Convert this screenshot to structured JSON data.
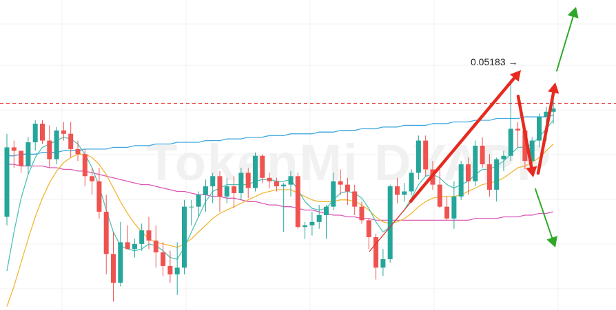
{
  "chart_data": {
    "type": "candlestick",
    "price_annotation": "0.05183 →",
    "watermark": "TokenMi DYAPP",
    "colors": {
      "up": "#26a69a",
      "down": "#ef5350",
      "ma_short": "#4dc3b6",
      "ma_mid": "#f2b632",
      "ma_long": "#d957b6",
      "ma_longest": "#3fa7e0",
      "resistance": "#e53935",
      "arrow_red": "#e62a1f",
      "arrow_green": "#2fa82a",
      "grid": "#f0f0f0"
    },
    "y_range": [
      0.0382,
      0.0565
    ],
    "resistance_level": 0.0504,
    "candles": [
      [
        0.0437,
        0.0486,
        0.0432,
        0.0478
      ],
      [
        0.0478,
        0.0482,
        0.0466,
        0.0476
      ],
      [
        0.0476,
        0.0476,
        0.0463,
        0.0467
      ],
      [
        0.0467,
        0.0484,
        0.0462,
        0.0481
      ],
      [
        0.0481,
        0.0494,
        0.0476,
        0.0492
      ],
      [
        0.0492,
        0.0494,
        0.048,
        0.0482
      ],
      [
        0.0482,
        0.0491,
        0.0466,
        0.0471
      ],
      [
        0.0471,
        0.049,
        0.0468,
        0.0488
      ],
      [
        0.0488,
        0.0493,
        0.0482,
        0.0486
      ],
      [
        0.0486,
        0.0493,
        0.0472,
        0.0477
      ],
      [
        0.0477,
        0.0482,
        0.047,
        0.0474
      ],
      [
        0.0474,
        0.0477,
        0.0455,
        0.0461
      ],
      [
        0.0461,
        0.0466,
        0.045,
        0.0458
      ],
      [
        0.0458,
        0.0466,
        0.0436,
        0.044
      ],
      [
        0.044,
        0.045,
        0.0403,
        0.0415
      ],
      [
        0.0415,
        0.0428,
        0.0387,
        0.0398
      ],
      [
        0.0398,
        0.0434,
        0.0396,
        0.0422
      ],
      [
        0.0422,
        0.0432,
        0.0418,
        0.0418
      ],
      [
        0.0418,
        0.0424,
        0.0413,
        0.0421
      ],
      [
        0.0421,
        0.0433,
        0.0417,
        0.0429
      ],
      [
        0.0429,
        0.0437,
        0.0418,
        0.0423
      ],
      [
        0.0423,
        0.0432,
        0.0407,
        0.0416
      ],
      [
        0.0416,
        0.0422,
        0.0402,
        0.0408
      ],
      [
        0.0408,
        0.0417,
        0.0398,
        0.0403
      ],
      [
        0.0403,
        0.0422,
        0.0391,
        0.0407
      ],
      [
        0.0407,
        0.0447,
        0.0403,
        0.0443
      ],
      [
        0.0443,
        0.0447,
        0.0432,
        0.0443
      ],
      [
        0.0443,
        0.0452,
        0.0437,
        0.045
      ],
      [
        0.045,
        0.0459,
        0.044,
        0.0455
      ],
      [
        0.0455,
        0.0463,
        0.0445,
        0.0461
      ],
      [
        0.0461,
        0.0464,
        0.044,
        0.0449
      ],
      [
        0.0449,
        0.046,
        0.0445,
        0.0455
      ],
      [
        0.0455,
        0.0461,
        0.0442,
        0.0451
      ],
      [
        0.0451,
        0.0466,
        0.0447,
        0.0463
      ],
      [
        0.0463,
        0.0466,
        0.0448,
        0.0454
      ],
      [
        0.0454,
        0.0475,
        0.0452,
        0.0473
      ],
      [
        0.0473,
        0.0474,
        0.0457,
        0.046
      ],
      [
        0.046,
        0.0463,
        0.0454,
        0.0458
      ],
      [
        0.0458,
        0.046,
        0.0452,
        0.0455
      ],
      [
        0.0455,
        0.0457,
        0.0428,
        0.0456
      ],
      [
        0.0456,
        0.0464,
        0.0449,
        0.0461
      ],
      [
        0.0461,
        0.0463,
        0.043,
        0.0431
      ],
      [
        0.0431,
        0.0434,
        0.0424,
        0.0432
      ],
      [
        0.0432,
        0.044,
        0.0426,
        0.0434
      ],
      [
        0.0434,
        0.0444,
        0.043,
        0.0438
      ],
      [
        0.0438,
        0.0444,
        0.0424,
        0.0443
      ],
      [
        0.0443,
        0.0463,
        0.0441,
        0.0458
      ],
      [
        0.0458,
        0.0465,
        0.045,
        0.0456
      ],
      [
        0.0456,
        0.046,
        0.0444,
        0.0452
      ],
      [
        0.0452,
        0.0456,
        0.0438,
        0.0443
      ],
      [
        0.0443,
        0.0446,
        0.0433,
        0.0435
      ],
      [
        0.0435,
        0.0436,
        0.0418,
        0.0425
      ],
      [
        0.0425,
        0.0427,
        0.04,
        0.0407
      ],
      [
        0.0407,
        0.0418,
        0.0402,
        0.0412
      ],
      [
        0.0412,
        0.0456,
        0.041,
        0.0455
      ],
      [
        0.0455,
        0.046,
        0.0445,
        0.045
      ],
      [
        0.045,
        0.0457,
        0.0446,
        0.0452
      ],
      [
        0.0452,
        0.0465,
        0.045,
        0.0463
      ],
      [
        0.0463,
        0.0485,
        0.0459,
        0.0482
      ],
      [
        0.0482,
        0.0485,
        0.0461,
        0.0465
      ],
      [
        0.0465,
        0.047,
        0.0453,
        0.0456
      ],
      [
        0.0456,
        0.0465,
        0.0442,
        0.0443
      ],
      [
        0.0443,
        0.0449,
        0.0435,
        0.0436
      ],
      [
        0.0436,
        0.0458,
        0.043,
        0.0449
      ],
      [
        0.0449,
        0.047,
        0.0447,
        0.0468
      ],
      [
        0.0468,
        0.0472,
        0.045,
        0.0458
      ],
      [
        0.0458,
        0.0482,
        0.0455,
        0.0479
      ],
      [
        0.0479,
        0.0484,
        0.0466,
        0.0468
      ],
      [
        0.0468,
        0.0474,
        0.0449,
        0.0453
      ],
      [
        0.0453,
        0.0472,
        0.0446,
        0.0471
      ],
      [
        0.0471,
        0.0476,
        0.0464,
        0.0473
      ],
      [
        0.0473,
        0.0518,
        0.047,
        0.0489
      ],
      [
        0.0489,
        0.0493,
        0.0478,
        0.0488
      ],
      [
        0.0488,
        0.049,
        0.0465,
        0.047
      ],
      [
        0.047,
        0.0484,
        0.0462,
        0.0482
      ],
      [
        0.0482,
        0.0498,
        0.0478,
        0.0496
      ],
      [
        0.0496,
        0.0502,
        0.0482,
        0.0499
      ],
      [
        0.0499,
        0.0506,
        0.0492,
        0.0501
      ]
    ],
    "ma_short": [
      0.0405,
      0.0428,
      0.0448,
      0.0462,
      0.0472,
      0.0478,
      0.048,
      0.0482,
      0.0484,
      0.0483,
      0.048,
      0.0474,
      0.0466,
      0.0455,
      0.0441,
      0.0428,
      0.042,
      0.0418,
      0.0417,
      0.0418,
      0.0421,
      0.042,
      0.0417,
      0.0413,
      0.0412,
      0.0419,
      0.0428,
      0.0437,
      0.0446,
      0.0452,
      0.0454,
      0.0456,
      0.0456,
      0.0456,
      0.0456,
      0.0458,
      0.0459,
      0.0459,
      0.0458,
      0.0458,
      0.0459,
      0.0453,
      0.0446,
      0.0442,
      0.0441,
      0.0442,
      0.0447,
      0.0451,
      0.0452,
      0.0451,
      0.0448,
      0.0442,
      0.0434,
      0.0428,
      0.0431,
      0.0436,
      0.0441,
      0.0448,
      0.0456,
      0.0461,
      0.0462,
      0.046,
      0.0456,
      0.0454,
      0.0456,
      0.0458,
      0.0462,
      0.0465,
      0.0465,
      0.0467,
      0.047,
      0.0474,
      0.0478,
      0.0478,
      0.048,
      0.0484,
      0.0489,
      0.0494
    ],
    "ma_mid": [
      0.0384,
      0.0396,
      0.041,
      0.0424,
      0.0437,
      0.0448,
      0.0457,
      0.0464,
      0.0469,
      0.0472,
      0.0474,
      0.0474,
      0.0472,
      0.0468,
      0.0462,
      0.0454,
      0.0446,
      0.0439,
      0.0433,
      0.0428,
      0.0424,
      0.0422,
      0.0421,
      0.042,
      0.0419,
      0.0421,
      0.0424,
      0.0428,
      0.0432,
      0.0436,
      0.0439,
      0.0441,
      0.0443,
      0.0445,
      0.0447,
      0.0449,
      0.0451,
      0.0452,
      0.0453,
      0.0453,
      0.0453,
      0.0451,
      0.0449,
      0.0447,
      0.0446,
      0.0446,
      0.0446,
      0.0447,
      0.0447,
      0.0446,
      0.0444,
      0.0441,
      0.0437,
      0.0434,
      0.0433,
      0.0434,
      0.0436,
      0.0439,
      0.0443,
      0.0446,
      0.0448,
      0.0449,
      0.0449,
      0.0449,
      0.045,
      0.0452,
      0.0454,
      0.0456,
      0.0457,
      0.0458,
      0.046,
      0.0463,
      0.0466,
      0.0467,
      0.0469,
      0.0472,
      0.0476,
      0.048
    ],
    "ma_long": [
      0.0468,
      0.0468,
      0.0467,
      0.0467,
      0.0467,
      0.0467,
      0.0466,
      0.0466,
      0.0465,
      0.0465,
      0.0464,
      0.0464,
      0.0463,
      0.0462,
      0.0461,
      0.046,
      0.0459,
      0.0458,
      0.0457,
      0.0456,
      0.0456,
      0.0455,
      0.0454,
      0.0453,
      0.0452,
      0.0452,
      0.0451,
      0.045,
      0.045,
      0.0449,
      0.0449,
      0.0448,
      0.0448,
      0.0447,
      0.0446,
      0.0446,
      0.0445,
      0.0444,
      0.0444,
      0.0443,
      0.0443,
      0.0442,
      0.0441,
      0.0441,
      0.044,
      0.0439,
      0.0438,
      0.0438,
      0.0437,
      0.0437,
      0.0436,
      0.0436,
      0.0435,
      0.0435,
      0.0435,
      0.0435,
      0.0435,
      0.0435,
      0.0435,
      0.0435,
      0.0435,
      0.0435,
      0.0435,
      0.0435,
      0.0435,
      0.0435,
      0.0436,
      0.0436,
      0.0436,
      0.0436,
      0.0437,
      0.0437,
      0.0437,
      0.0438,
      0.0438,
      0.0439,
      0.0439,
      0.044
    ],
    "ma_longest": [
      0.0473,
      0.0473,
      0.0474,
      0.0474,
      0.0474,
      0.0475,
      0.0475,
      0.0475,
      0.0476,
      0.0476,
      0.0476,
      0.0477,
      0.0477,
      0.0477,
      0.0477,
      0.0478,
      0.0478,
      0.0478,
      0.0479,
      0.0479,
      0.0479,
      0.048,
      0.048,
      0.048,
      0.0481,
      0.0481,
      0.0481,
      0.0481,
      0.0482,
      0.0482,
      0.0482,
      0.0483,
      0.0483,
      0.0483,
      0.0484,
      0.0484,
      0.0484,
      0.0485,
      0.0485,
      0.0485,
      0.0486,
      0.0486,
      0.0486,
      0.0486,
      0.0487,
      0.0487,
      0.0487,
      0.0488,
      0.0488,
      0.0488,
      0.0489,
      0.0489,
      0.0489,
      0.049,
      0.049,
      0.049,
      0.0491,
      0.0491,
      0.0491,
      0.0491,
      0.0492,
      0.0492,
      0.0492,
      0.0493,
      0.0493,
      0.0493,
      0.0494,
      0.0494,
      0.0494,
      0.0495,
      0.0495,
      0.0495,
      0.0495,
      0.0496,
      0.0496,
      0.0496,
      0.0496,
      0.0497
    ]
  }
}
